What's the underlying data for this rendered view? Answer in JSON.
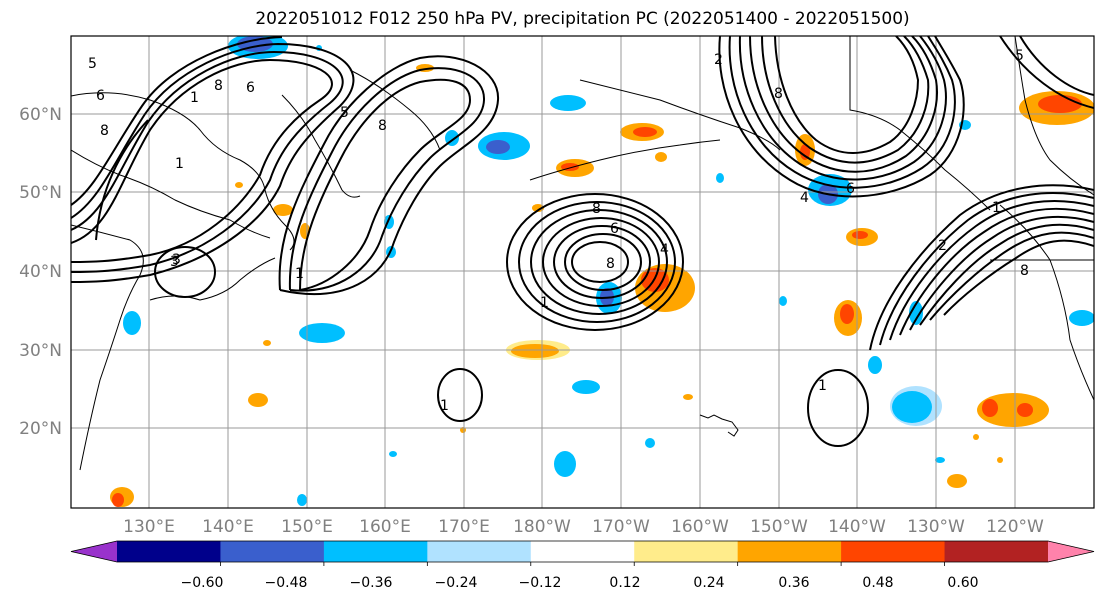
{
  "title": "2022051012 F012 250 hPa PV, precipitation PC (2022051400 - 2022051500)",
  "lat_labels": [
    "60°N",
    "50°N",
    "40°N",
    "30°N",
    "20°N"
  ],
  "lon_labels": [
    "130°E",
    "140°E",
    "150°E",
    "160°E",
    "170°E",
    "180°W",
    "170°W",
    "160°W",
    "150°W",
    "140°W",
    "130°W",
    "120°W"
  ],
  "colorbar": {
    "ticks": [
      "−0.60",
      "−0.48",
      "−0.36",
      "−0.24",
      "−0.12",
      "0.12",
      "0.24",
      "0.36",
      "0.48",
      "0.60"
    ],
    "colors": [
      "#9932cc",
      "#00008b",
      "#3a5fcd",
      "#00bfff",
      "#b0e2ff",
      "#ffffff",
      "#ffec8b",
      "#ffa500",
      "#ff4500",
      "#b22222",
      "#ff82ab"
    ]
  },
  "contour_labels": [
    "5",
    "6",
    "8",
    "1",
    "8",
    "6",
    "5",
    "8",
    "1",
    "1",
    "3",
    "8",
    "6",
    "4",
    "1",
    "2",
    "8",
    "4",
    "6",
    "1",
    "2",
    "8",
    "5",
    "1",
    "1",
    "8",
    "3"
  ],
  "colors": {
    "grid": "#999999",
    "contour": "#000000",
    "coast": "#000000",
    "axis_label": "#808080"
  }
}
